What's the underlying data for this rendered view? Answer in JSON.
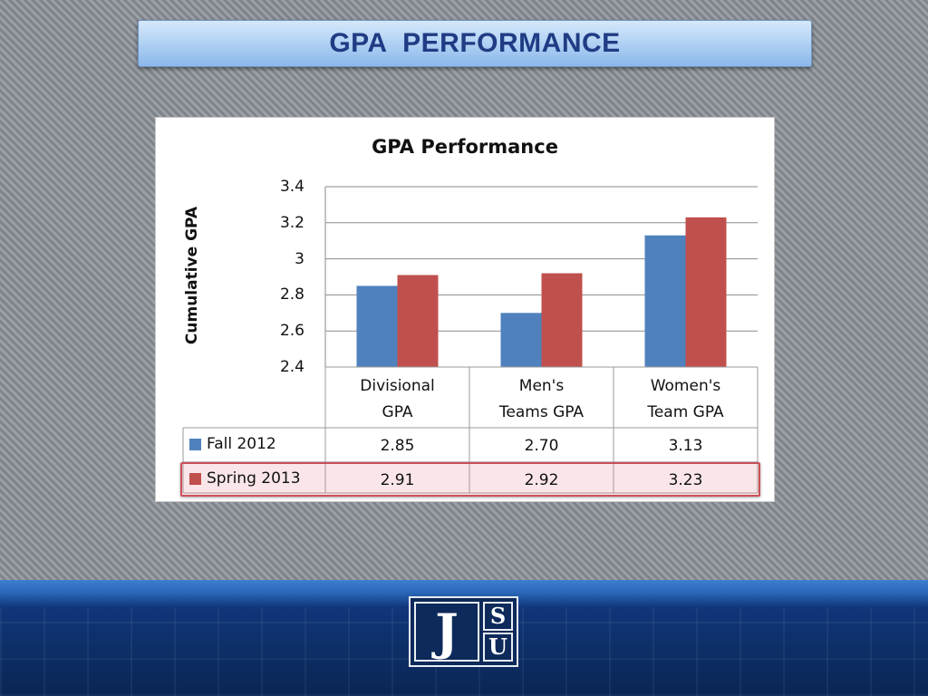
{
  "slide": {
    "title": "GPA  PERFORMANCE",
    "logo": {
      "j": "J",
      "s": "S",
      "u": "U"
    }
  },
  "chart_data": {
    "type": "bar",
    "title": "GPA Performance",
    "ylabel": "Cumulative GPA",
    "xlabel": "",
    "ylim": [
      2.4,
      3.4
    ],
    "yticks": [
      "3.4",
      "3.2",
      "3",
      "2.8",
      "2.6",
      "2.4"
    ],
    "grid": true,
    "categories": [
      "Divisional GPA",
      "Men's Teams GPA",
      "Women's Team GPA"
    ],
    "category_lines": [
      [
        "Divisional",
        "GPA"
      ],
      [
        "Men's",
        "Teams GPA"
      ],
      [
        "Women's",
        "Team GPA"
      ]
    ],
    "series": [
      {
        "name": "Fall 2012",
        "color": "#4f81bd",
        "values": [
          2.85,
          2.7,
          3.13
        ],
        "labels": [
          "2.85",
          "2.70",
          "3.13"
        ]
      },
      {
        "name": "Spring 2013",
        "color": "#c0504d",
        "values": [
          2.91,
          2.92,
          3.23
        ],
        "labels": [
          "2.91",
          "2.92",
          "3.23"
        ]
      }
    ],
    "legend": "data-table"
  }
}
